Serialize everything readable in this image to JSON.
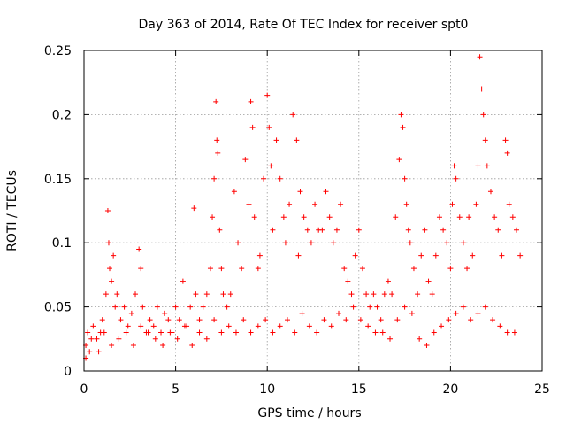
{
  "chart_data": {
    "type": "scatter",
    "title": "Day 363 of 2014, Rate Of TEC Index for receiver spt0",
    "xlabel": "GPS time / hours",
    "ylabel": "ROTI / TECUs",
    "xlim": [
      0,
      25
    ],
    "ylim": [
      0,
      0.25
    ],
    "xticks": [
      0,
      5,
      10,
      15,
      20,
      25
    ],
    "yticks": [
      0,
      0.05,
      0.1,
      0.15,
      0.2,
      0.25
    ],
    "xtick_labels": [
      "0",
      "5",
      "10",
      "15",
      "20",
      "25"
    ],
    "ytick_labels": [
      "0",
      "0.05",
      "0.1",
      "0.15",
      "0.2",
      "0.25"
    ],
    "grid": true,
    "marker": "+",
    "color": "#ff0000",
    "series": [
      {
        "name": "ROTI",
        "x": [
          0.1,
          0.2,
          0.3,
          0.5,
          0.7,
          0.9,
          1.0,
          1.2,
          1.3,
          1.35,
          1.4,
          1.5,
          1.6,
          1.7,
          1.8,
          2.0,
          2.2,
          2.4,
          2.6,
          2.8,
          3.0,
          3.1,
          3.2,
          3.4,
          3.6,
          3.8,
          4.0,
          4.2,
          4.4,
          4.6,
          4.8,
          5.0,
          5.2,
          5.4,
          5.6,
          5.8,
          6.0,
          6.1,
          6.3,
          6.5,
          6.7,
          6.9,
          7.0,
          7.1,
          7.2,
          7.25,
          7.3,
          7.4,
          7.5,
          7.6,
          7.8,
          8.0,
          8.2,
          8.4,
          8.6,
          8.8,
          9.0,
          9.1,
          9.2,
          9.3,
          9.5,
          9.6,
          9.8,
          10.0,
          10.1,
          10.2,
          10.3,
          10.5,
          10.7,
          10.9,
          11.0,
          11.2,
          11.4,
          11.6,
          11.7,
          11.8,
          12.0,
          12.2,
          12.4,
          12.6,
          12.8,
          13.0,
          13.2,
          13.4,
          13.6,
          13.8,
          14.0,
          14.2,
          14.4,
          14.6,
          14.8,
          15.0,
          15.2,
          15.4,
          15.6,
          15.8,
          16.0,
          16.2,
          16.4,
          16.6,
          16.8,
          17.0,
          17.2,
          17.3,
          17.4,
          17.5,
          17.6,
          17.7,
          17.8,
          18.0,
          18.2,
          18.4,
          18.6,
          18.8,
          19.0,
          19.2,
          19.4,
          19.6,
          19.8,
          20.0,
          20.1,
          20.2,
          20.3,
          20.5,
          20.7,
          20.9,
          21.0,
          21.2,
          21.4,
          21.5,
          21.6,
          21.7,
          21.8,
          21.9,
          22.0,
          22.2,
          22.4,
          22.6,
          22.8,
          23.0,
          23.1,
          23.2,
          23.4,
          23.6,
          23.8,
          0.1,
          0.4,
          0.8,
          1.1,
          1.5,
          1.9,
          2.3,
          2.7,
          3.1,
          3.5,
          3.9,
          4.3,
          4.7,
          5.1,
          5.5,
          5.9,
          6.3,
          6.7,
          7.1,
          7.5,
          7.9,
          8.3,
          8.7,
          9.1,
          9.5,
          9.9,
          10.3,
          10.7,
          11.1,
          11.5,
          11.9,
          12.3,
          12.7,
          13.1,
          13.5,
          13.9,
          14.3,
          14.7,
          15.1,
          15.5,
          15.9,
          16.3,
          16.7,
          17.1,
          17.5,
          17.9,
          18.3,
          18.7,
          19.1,
          19.5,
          19.9,
          20.3,
          20.7,
          21.1,
          21.5,
          21.9,
          22.3,
          22.7,
          23.1,
          23.5
        ],
        "y": [
          0.02,
          0.03,
          0.015,
          0.035,
          0.025,
          0.03,
          0.04,
          0.06,
          0.125,
          0.1,
          0.08,
          0.07,
          0.09,
          0.05,
          0.06,
          0.04,
          0.05,
          0.035,
          0.045,
          0.06,
          0.095,
          0.08,
          0.05,
          0.03,
          0.04,
          0.035,
          0.05,
          0.03,
          0.045,
          0.04,
          0.03,
          0.05,
          0.04,
          0.07,
          0.035,
          0.05,
          0.127,
          0.06,
          0.04,
          0.05,
          0.06,
          0.08,
          0.12,
          0.15,
          0.21,
          0.18,
          0.17,
          0.11,
          0.08,
          0.06,
          0.05,
          0.06,
          0.14,
          0.1,
          0.08,
          0.165,
          0.13,
          0.21,
          0.19,
          0.12,
          0.08,
          0.09,
          0.15,
          0.215,
          0.19,
          0.16,
          0.11,
          0.18,
          0.15,
          0.12,
          0.1,
          0.13,
          0.2,
          0.18,
          0.09,
          0.14,
          0.12,
          0.11,
          0.1,
          0.13,
          0.11,
          0.11,
          0.14,
          0.12,
          0.1,
          0.11,
          0.13,
          0.08,
          0.07,
          0.06,
          0.09,
          0.11,
          0.08,
          0.06,
          0.05,
          0.06,
          0.05,
          0.04,
          0.06,
          0.07,
          0.06,
          0.12,
          0.165,
          0.2,
          0.19,
          0.15,
          0.13,
          0.11,
          0.1,
          0.08,
          0.06,
          0.09,
          0.11,
          0.07,
          0.06,
          0.09,
          0.12,
          0.11,
          0.1,
          0.08,
          0.13,
          0.16,
          0.15,
          0.12,
          0.1,
          0.08,
          0.12,
          0.09,
          0.13,
          0.16,
          0.245,
          0.22,
          0.2,
          0.18,
          0.16,
          0.14,
          0.12,
          0.11,
          0.09,
          0.18,
          0.17,
          0.13,
          0.12,
          0.11,
          0.09,
          0.01,
          0.025,
          0.015,
          0.03,
          0.02,
          0.025,
          0.03,
          0.02,
          0.035,
          0.03,
          0.025,
          0.02,
          0.03,
          0.025,
          0.035,
          0.02,
          0.03,
          0.025,
          0.04,
          0.03,
          0.035,
          0.03,
          0.04,
          0.03,
          0.035,
          0.04,
          0.03,
          0.035,
          0.04,
          0.03,
          0.045,
          0.035,
          0.03,
          0.04,
          0.035,
          0.045,
          0.04,
          0.05,
          0.04,
          0.035,
          0.03,
          0.03,
          0.025,
          0.04,
          0.05,
          0.045,
          0.025,
          0.02,
          0.03,
          0.035,
          0.04,
          0.045,
          0.05,
          0.04,
          0.045,
          0.05,
          0.04,
          0.035,
          0.03,
          0.03
        ]
      }
    ]
  }
}
